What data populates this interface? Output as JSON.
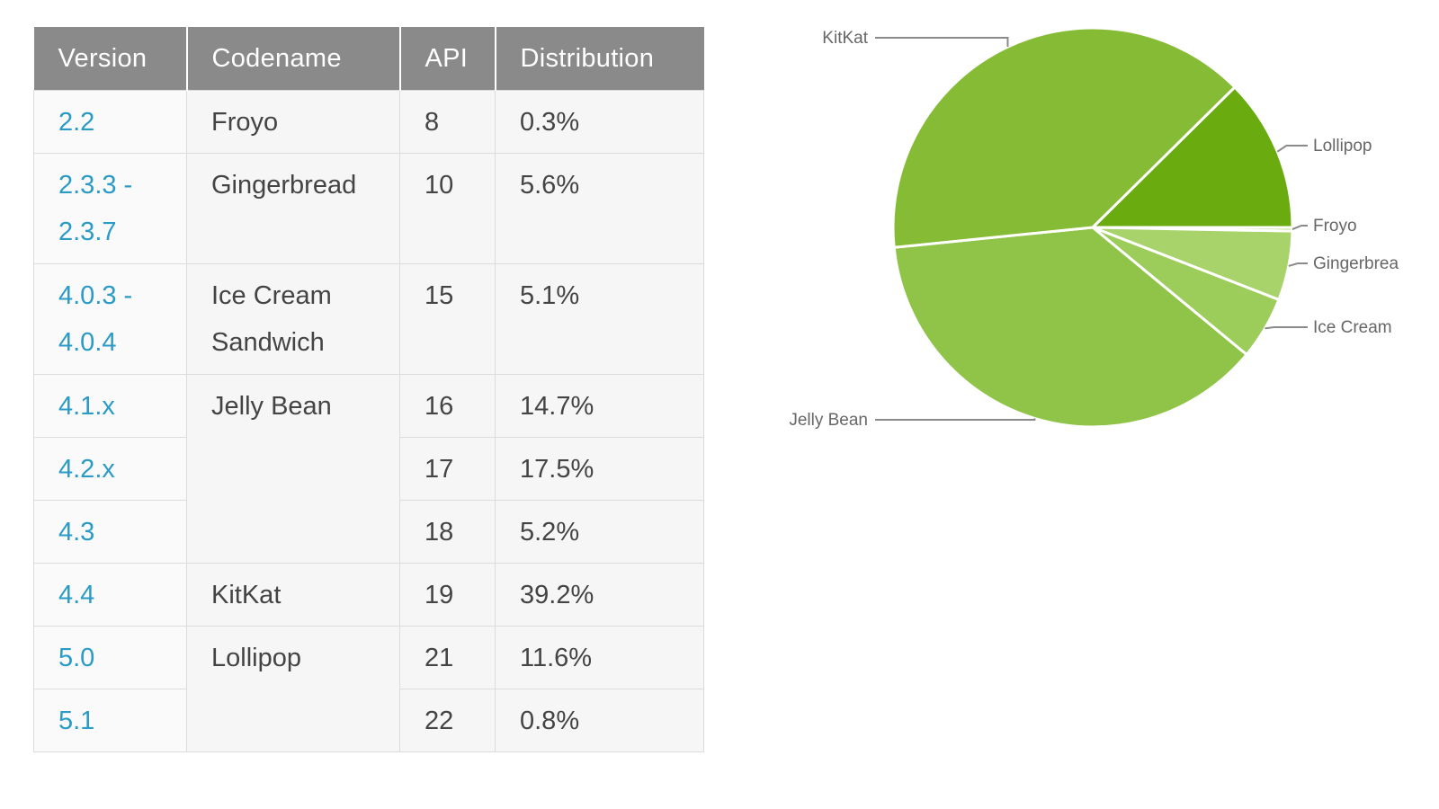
{
  "table": {
    "headers": [
      "Version",
      "Codename",
      "API",
      "Distribution"
    ],
    "rows": [
      {
        "version": "2.2",
        "codename": "Froyo",
        "api": "8",
        "distribution": "0.3%"
      },
      {
        "version": "2.3.3 -\n2.3.7",
        "codename": "Gingerbread",
        "api": "10",
        "distribution": "5.6%"
      },
      {
        "version": "4.0.3 -\n4.0.4",
        "codename": "Ice Cream\nSandwich",
        "api": "15",
        "distribution": "5.1%"
      },
      {
        "version": "4.1.x",
        "codename": "Jelly Bean",
        "api": "16",
        "distribution": "14.7%"
      },
      {
        "version": "4.2.x",
        "codename": "",
        "api": "17",
        "distribution": "17.5%"
      },
      {
        "version": "4.3",
        "codename": "",
        "api": "18",
        "distribution": "5.2%"
      },
      {
        "version": "4.4",
        "codename": "KitKat",
        "api": "19",
        "distribution": "39.2%"
      },
      {
        "version": "5.0",
        "codename": "Lollipop",
        "api": "21",
        "distribution": "11.6%"
      },
      {
        "version": "5.1",
        "codename": "",
        "api": "22",
        "distribution": "0.8%"
      }
    ]
  },
  "chart_data": {
    "type": "pie",
    "categories": [
      "Froyo",
      "Gingerbread",
      "Ice Cream",
      "Jelly Bean",
      "KitKat",
      "Lollipop"
    ],
    "values": [
      0.3,
      5.6,
      5.1,
      37.4,
      39.2,
      12.4
    ],
    "colors": [
      "#bfe08a",
      "#a8d36a",
      "#9ccc5a",
      "#8fc449",
      "#86bb35",
      "#6aab10"
    ],
    "labels": {
      "Froyo": "Froyo",
      "Gingerbread": "Gingerbrea",
      "Ice Cream": "Ice Cream",
      "Jelly Bean": "Jelly Bean",
      "KitKat": "KitKat",
      "Lollipop": "Lollipop"
    }
  }
}
